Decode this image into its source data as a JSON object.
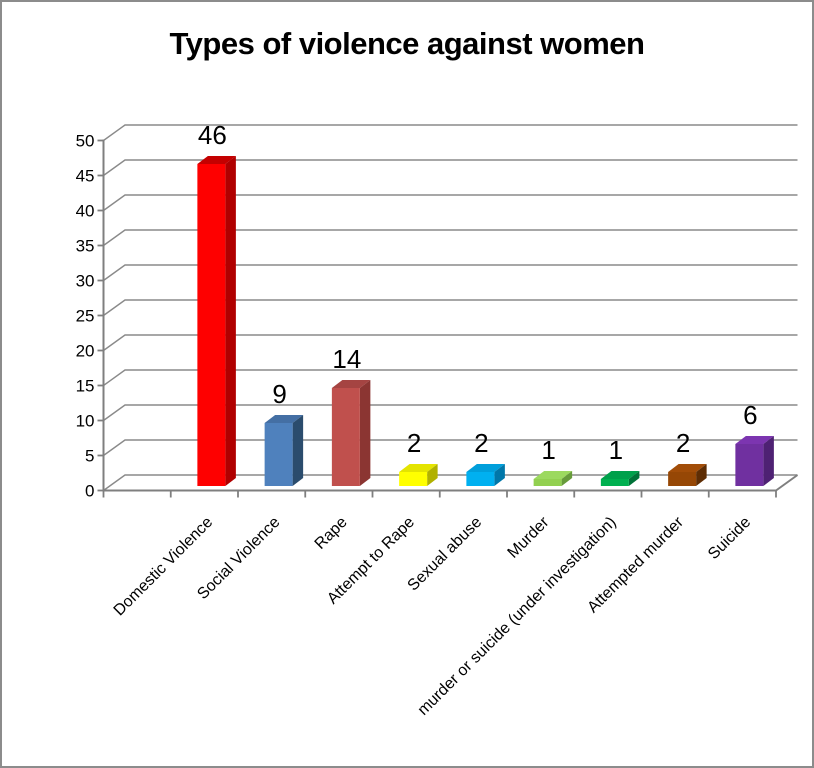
{
  "title": "Types of violence against women",
  "chart_data": {
    "type": "bar",
    "style": "3d-column",
    "title": "Types of violence against women",
    "categories": [
      "Domestic Violence",
      "Social Violence",
      "Rape",
      "Attempt to Rape",
      "Sexual abuse",
      "Murder",
      "murder or suicide (under investigation)",
      "Attempted murder",
      "Suicide"
    ],
    "values": [
      46,
      9,
      14,
      2,
      2,
      1,
      1,
      2,
      6
    ],
    "data_labels": [
      "46",
      "9",
      "14",
      "2",
      "2",
      "1",
      "1",
      "2",
      "6"
    ],
    "bar_colors": [
      {
        "front": "#FE0000",
        "top": "#C40000",
        "side": "#B00000"
      },
      {
        "front": "#4F81BD",
        "top": "#446FA4",
        "side": "#2B4C6D"
      },
      {
        "front": "#C0504D",
        "top": "#A54442",
        "side": "#8B3532"
      },
      {
        "front": "#FFFF00",
        "top": "#E4E400",
        "side": "#B1B100"
      },
      {
        "front": "#00B0F0",
        "top": "#009FDB",
        "side": "#0077A9"
      },
      {
        "front": "#92D050",
        "top": "#9CD95F",
        "side": "#679B3B"
      },
      {
        "front": "#00B050",
        "top": "#00A04B",
        "side": "#007238"
      },
      {
        "front": "#964705",
        "top": "#A24D08",
        "side": "#5E2D04"
      },
      {
        "front": "#7030A0",
        "top": "#7C35B0",
        "side": "#4E2173"
      }
    ],
    "xlabel": "",
    "ylabel": "",
    "ylim": [
      0,
      50
    ],
    "yticks": [
      0,
      5,
      10,
      15,
      20,
      25,
      30,
      35,
      40,
      45,
      50
    ],
    "grid": true,
    "legend": false,
    "gridline_color": "#8A8A8A",
    "axis_color": "#7F7F7F",
    "label_color": "#000000"
  }
}
